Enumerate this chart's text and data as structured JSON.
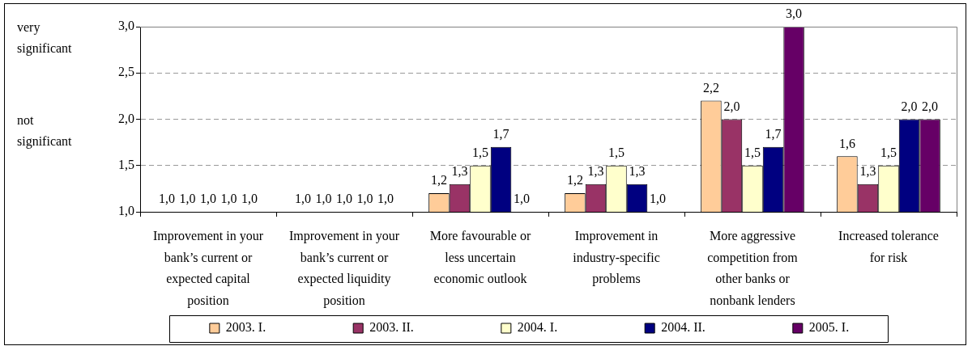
{
  "chart_data": {
    "type": "bar",
    "categories": [
      "Improvement in your bank’s current or expected capital position",
      "Improvement in your bank’s current or expected liquidity position",
      "More favourable or less uncertain economic outlook",
      "Improvement in industry-specific problems",
      "More aggressive competition from other banks or nonbank lenders",
      "Increased tolerance for risk"
    ],
    "series": [
      {
        "name": "2003. I.",
        "color": "#ffcc99",
        "values": [
          1,
          1,
          1.2,
          1.2,
          2.2,
          1.6
        ],
        "value_labels": [
          "1,0",
          "1,0",
          "1,2",
          "1,2",
          "2,2",
          "1,6"
        ]
      },
      {
        "name": "2003. II.",
        "color": "#993366",
        "values": [
          1,
          1,
          1.3,
          1.3,
          2.0,
          1.3
        ],
        "value_labels": [
          "1,0",
          "1,0",
          "1,3",
          "1,3",
          "2,0",
          "1,3"
        ]
      },
      {
        "name": "2004. I.",
        "color": "#ffffcc",
        "values": [
          1,
          1,
          1.5,
          1.5,
          1.5,
          1.5
        ],
        "value_labels": [
          "1,0",
          "1,0",
          "1,5",
          "1,5",
          "1,5",
          "1,5"
        ]
      },
      {
        "name": "2004. II.",
        "color": "#000080",
        "values": [
          1,
          1,
          1.7,
          1.3,
          1.7,
          2.0
        ],
        "value_labels": [
          "1,0",
          "1,0",
          "1,7",
          "1,3",
          "1,7",
          "2,0"
        ]
      },
      {
        "name": "2005. I.",
        "color": "#660066",
        "values": [
          1,
          1,
          1,
          1,
          3.0,
          2.0
        ],
        "value_labels": [
          "1,0",
          "1,0",
          "1,0",
          "1,0",
          "3,0",
          "2,0"
        ]
      }
    ],
    "ylim": [
      1,
      3
    ],
    "yticks": [
      {
        "value": 1,
        "label": "1,0"
      },
      {
        "value": 1.5,
        "label": "1,5"
      },
      {
        "value": 2,
        "label": "2,0"
      },
      {
        "value": 2.5,
        "label": "2,5"
      },
      {
        "value": 3,
        "label": "3,0"
      }
    ],
    "grid": "y",
    "legend": "bottom",
    "annotations": [
      "very significant",
      "not significant"
    ]
  }
}
